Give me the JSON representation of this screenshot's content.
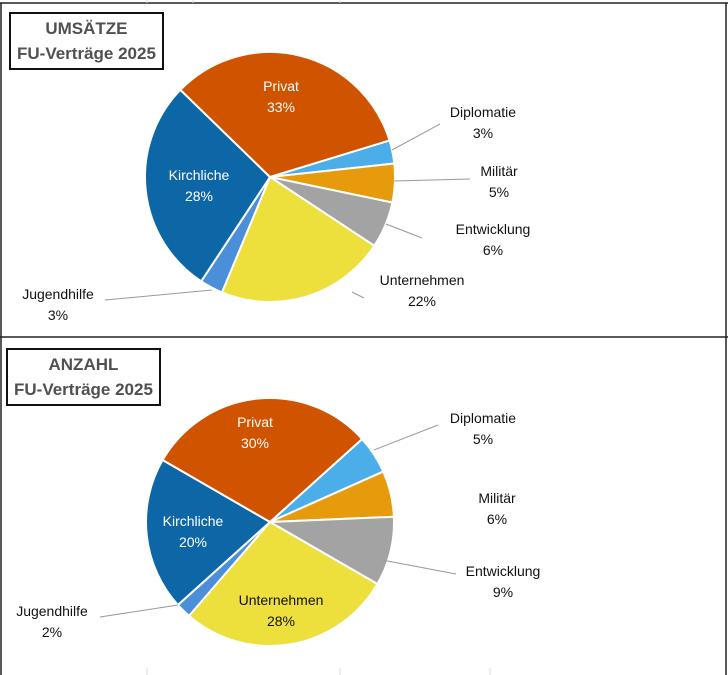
{
  "chart_data": [
    {
      "type": "pie",
      "title": [
        "UMSÄTZE",
        "FU-Verträge 2025"
      ],
      "categories": [
        "Diplomatie",
        "Militär",
        "Entwicklung",
        "Unternehmen",
        "Jugendhilfe",
        "Kirchliche",
        "Privat"
      ],
      "values": [
        3,
        5,
        6,
        22,
        3,
        28,
        33
      ],
      "labels": [
        "3%",
        "5%",
        "6%",
        "22%",
        "3%",
        "28%",
        "33%"
      ],
      "colors": [
        "#4BAEE8",
        "#E69B0C",
        "#A3A3A3",
        "#EDE03C",
        "#4A8FD8",
        "#0D66A6",
        "#D05300"
      ]
    },
    {
      "type": "pie",
      "title": [
        "ANZAHL",
        "FU-Verträge 2025"
      ],
      "categories": [
        "Diplomatie",
        "Militär",
        "Entwicklung",
        "Unternehmen",
        "Jugendhilfe",
        "Kirchliche",
        "Privat"
      ],
      "values": [
        5,
        6,
        9,
        28,
        2,
        20,
        30
      ],
      "labels": [
        "5%",
        "6%",
        "9%",
        "28%",
        "2%",
        "20%",
        "30%"
      ],
      "colors": [
        "#4BAEE8",
        "#E69B0C",
        "#A3A3A3",
        "#EDE03C",
        "#4A8FD8",
        "#0D66A6",
        "#D05300"
      ]
    }
  ]
}
